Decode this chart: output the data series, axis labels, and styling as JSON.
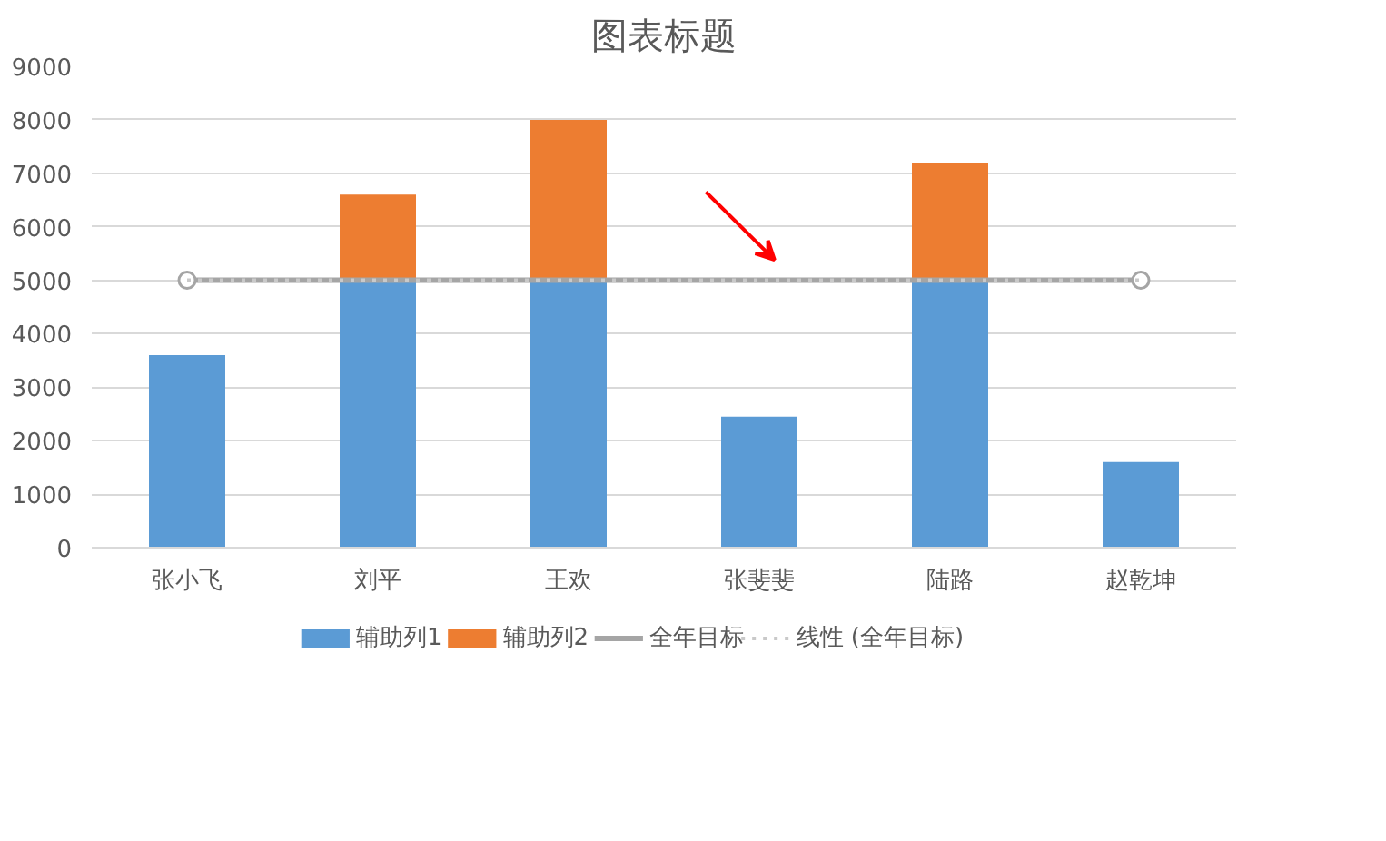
{
  "chart_data": {
    "type": "bar",
    "title": "图表标题",
    "stacked": true,
    "categories": [
      "张小飞",
      "刘平",
      "王欢",
      "张斐斐",
      "陆路",
      "赵乾坤"
    ],
    "series": [
      {
        "name": "辅助列1",
        "color": "#5b9bd5",
        "values": [
          3600,
          5000,
          5000,
          2450,
          5000,
          1600
        ]
      },
      {
        "name": "辅助列2",
        "color": "#ed7d31",
        "values": [
          null,
          1600,
          3000,
          null,
          2200,
          null
        ]
      },
      {
        "name": "全年目标",
        "type": "line",
        "color": "#a5a5a5",
        "marker": "circle",
        "x": [
          "张小飞",
          "赵乾坤"
        ],
        "values": [
          5000,
          5000
        ]
      },
      {
        "name": "线性 (全年目标)",
        "type": "line",
        "color": "#c9c9c9",
        "line_style": "dotted",
        "marker": "none",
        "x": [
          "张小飞",
          "赵乾坤"
        ],
        "values": [
          5000,
          5000
        ]
      }
    ],
    "ylim": [
      0,
      9000
    ],
    "yticks": [
      0,
      1000,
      2000,
      3000,
      4000,
      5000,
      6000,
      7000,
      8000,
      9000
    ],
    "grid": "y",
    "legend": "bottom"
  }
}
